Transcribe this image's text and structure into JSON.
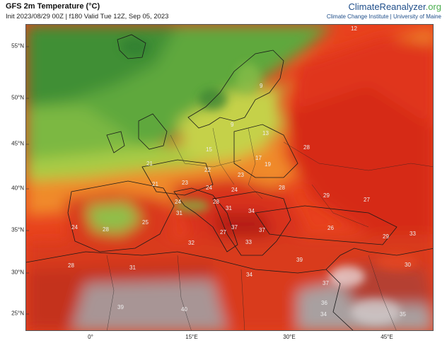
{
  "header": {
    "title": "GFS 2m Temperature (°C)",
    "subtitle": "Init 2023/08/29 00Z | f180 Valid Tue 12Z, Sep 05, 2023",
    "brand_main": "ClimateReanalyzer",
    "brand_tld": ".org",
    "affiliation": "Climate Change Institute | University of Maine"
  },
  "axes": {
    "latitude_labels": [
      "55°N",
      "50°N",
      "45°N",
      "40°N",
      "35°N",
      "30°N",
      "25°N"
    ],
    "longitude_labels": [
      "0°",
      "15°E",
      "30°E",
      "45°E"
    ]
  },
  "temperature_labels": [
    "12",
    "9",
    "9",
    "13",
    "15",
    "17",
    "19",
    "28",
    "21",
    "22",
    "23",
    "21",
    "23",
    "24",
    "24",
    "28",
    "29",
    "27",
    "28",
    "31",
    "34",
    "24",
    "31",
    "25",
    "27",
    "37",
    "37",
    "26",
    "29",
    "33",
    "32",
    "33",
    "24",
    "28",
    "28",
    "31",
    "39",
    "30",
    "34",
    "37",
    "36",
    "39",
    "40",
    "34",
    "35"
  ],
  "colors": {
    "cold": "#4f9a3a",
    "mild": "#bfd64a",
    "warm": "#f0a030",
    "hot": "#e03a1a",
    "very_hot": "#b81a12",
    "desert_gray": "#a89898"
  }
}
